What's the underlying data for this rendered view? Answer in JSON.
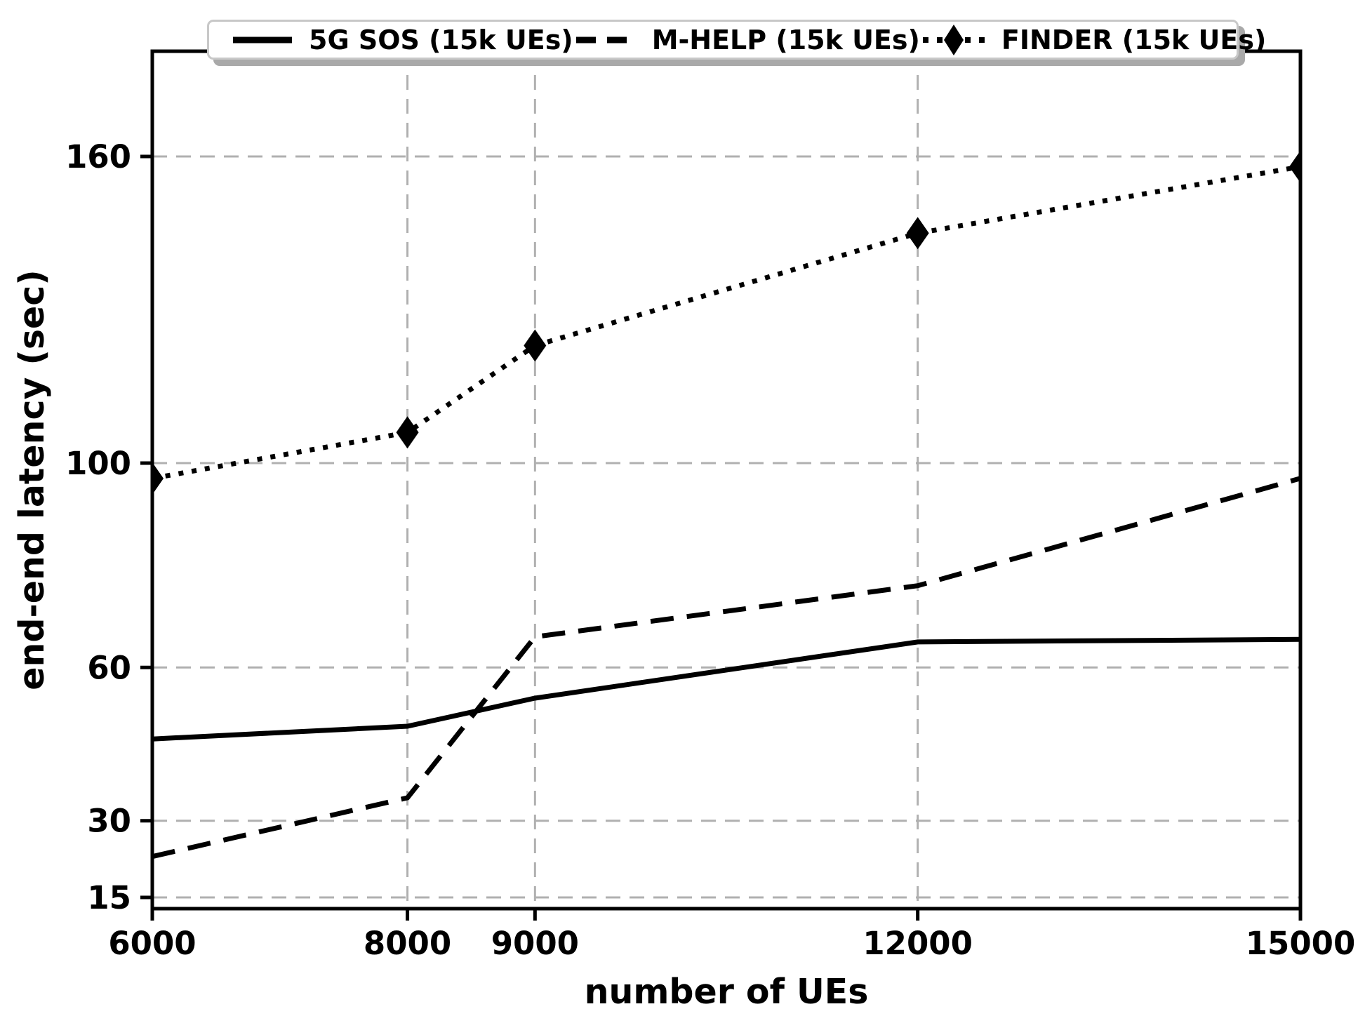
{
  "chart_data": {
    "type": "line",
    "title": "",
    "xlabel": "number of UEs",
    "ylabel": "end-end latency (sec)",
    "x_ticks": [
      6000,
      8000,
      9000,
      12000,
      15000
    ],
    "y_ticks": [
      15,
      30,
      60,
      100,
      160
    ],
    "xlim": [
      6000,
      15000
    ],
    "ylim": [
      12.8,
      180.6
    ],
    "grid": true,
    "grid_style": "dashed",
    "legend_position": "top-center-horizontal",
    "x": [
      6000,
      8000,
      9000,
      12000,
      15000
    ],
    "series": [
      {
        "name": "5G SOS (15k UEs)",
        "style": "solid",
        "marker": "none",
        "color": "#000000",
        "values": [
          46,
          48.5,
          54,
          65,
          65.5
        ]
      },
      {
        "name": "M-HELP (15k UEs)",
        "style": "dashed",
        "marker": "none",
        "color": "#000000",
        "values": [
          23,
          34.5,
          66,
          76,
          97
        ]
      },
      {
        "name": "FINDER (15k UEs)",
        "style": "dotted",
        "marker": "thin-diamond",
        "color": "#000000",
        "values": [
          97,
          106,
          123,
          145,
          158
        ]
      }
    ],
    "colors": {
      "line": "#000000",
      "grid": "#b0b0b0",
      "background": "#ffffff",
      "legend_border": "#c8c8c8",
      "legend_shadow": "#a9a9a9"
    }
  }
}
